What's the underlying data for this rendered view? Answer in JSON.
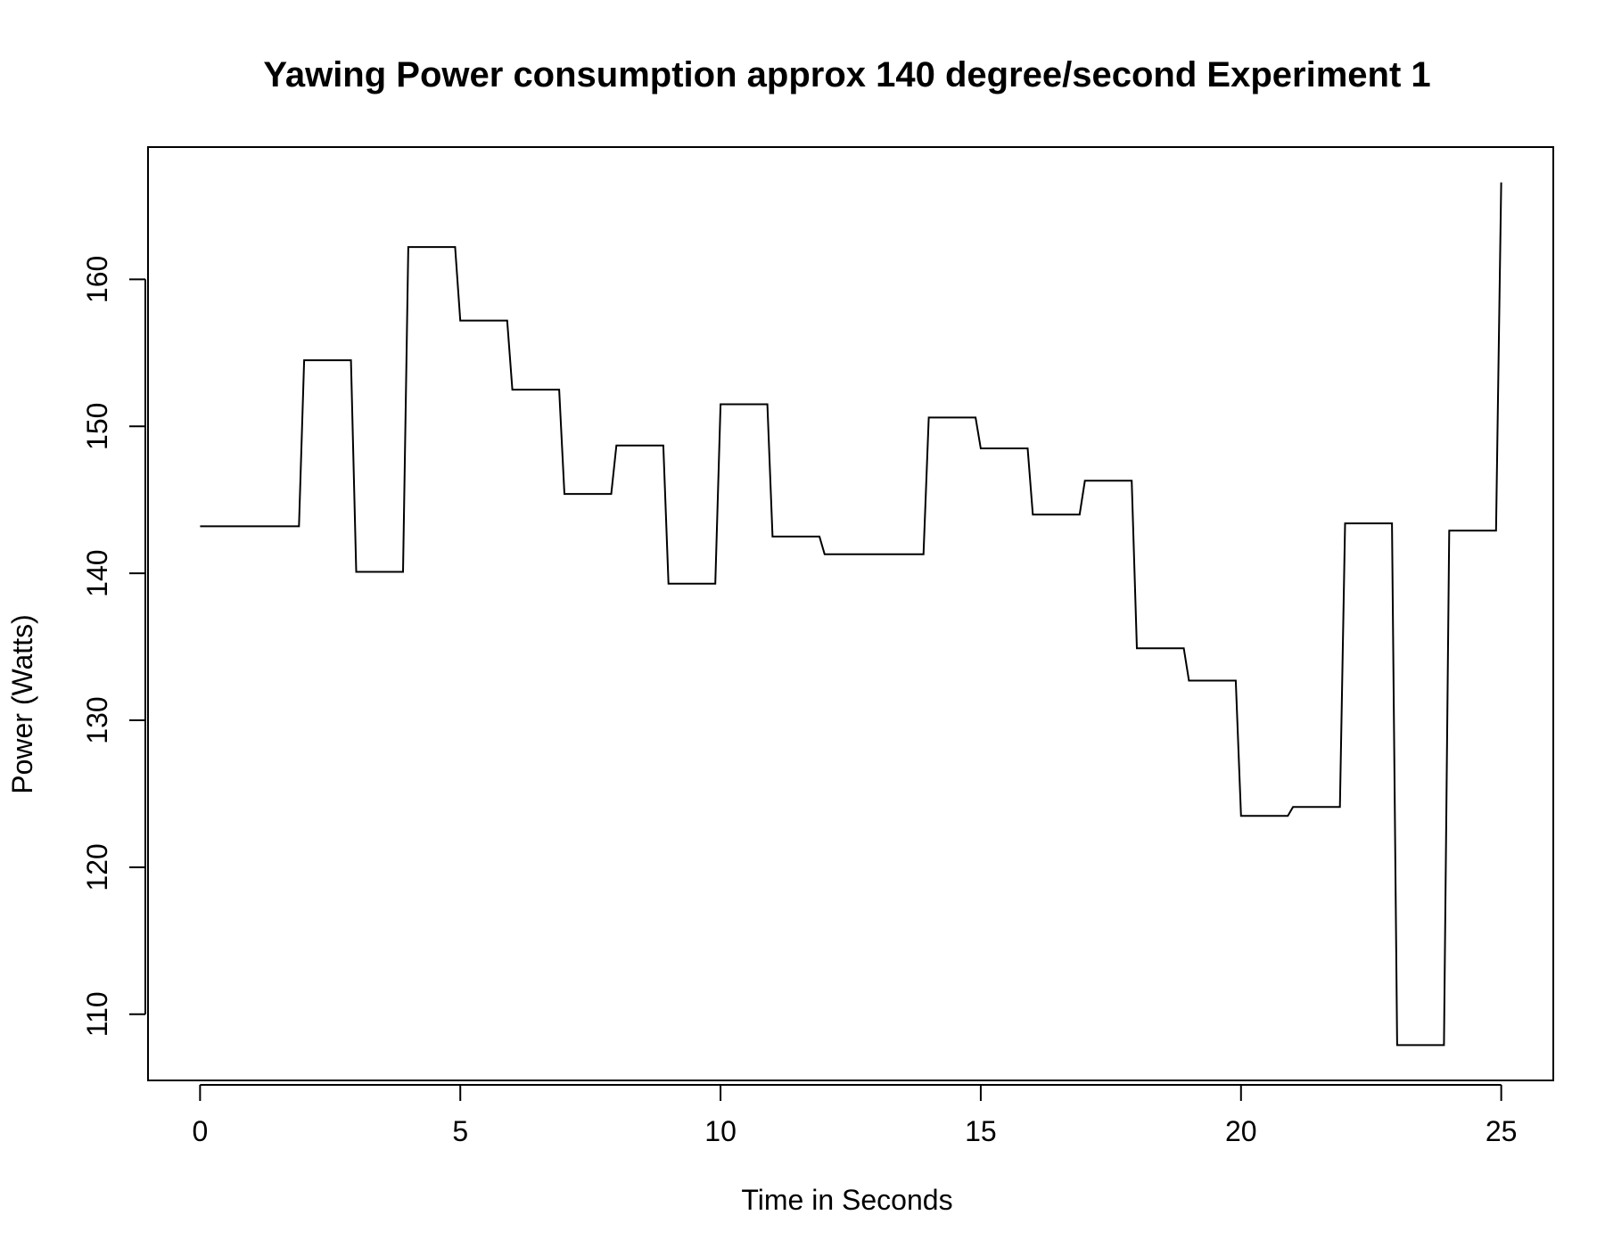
{
  "chart_data": {
    "type": "line",
    "title": "Yawing Power consumption approx 140 degree/second Experiment 1",
    "xlabel": "Time in Seconds",
    "ylabel": "Power (Watts)",
    "xlim": [
      -1,
      26
    ],
    "ylim": [
      105.5,
      169
    ],
    "x_ticks": [
      0,
      5,
      10,
      15,
      20,
      25
    ],
    "y_ticks": [
      110,
      120,
      130,
      140,
      150,
      160
    ],
    "grid": false,
    "line_color": "#000000",
    "series": [
      {
        "x": [
          0,
          1.9,
          2.0,
          2.9,
          3.0,
          3.9,
          4.0,
          4.9,
          5.0,
          5.9,
          6.0,
          6.9,
          7.0,
          7.9,
          8.0,
          8.9,
          9.0,
          9.9,
          10.0,
          10.9,
          11.0,
          11.9,
          12.0,
          13.9,
          14.0,
          14.9,
          15.0,
          15.9,
          16.0,
          16.9,
          17.0,
          17.9,
          18.0,
          18.9,
          19.0,
          19.9,
          20.0,
          20.9,
          21.0,
          21.9,
          22.0,
          22.9,
          23.0,
          23.9,
          24.0,
          24.9,
          25.0
        ],
        "y": [
          143.2,
          143.2,
          154.5,
          154.5,
          140.1,
          140.1,
          162.2,
          162.2,
          157.2,
          157.2,
          152.5,
          152.5,
          145.4,
          145.4,
          148.7,
          148.7,
          139.3,
          139.3,
          151.5,
          151.5,
          142.5,
          142.5,
          141.3,
          141.3,
          150.6,
          150.6,
          148.5,
          148.5,
          144.0,
          144.0,
          146.3,
          146.3,
          134.9,
          134.9,
          132.7,
          132.7,
          123.5,
          123.5,
          124.1,
          124.1,
          143.4,
          143.4,
          107.9,
          107.9,
          142.9,
          142.9,
          166.6
        ]
      }
    ]
  }
}
